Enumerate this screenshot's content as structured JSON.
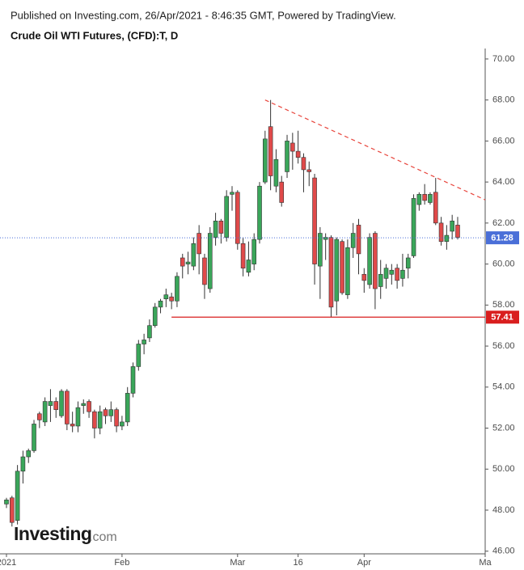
{
  "chart_data": {
    "type": "candlestick",
    "subtitle": "Published on Investing.com, 26/Apr/2021 - 8:46:35 GMT, Powered by TradingView.",
    "title": "Crude Oil WTI Futures, (CFD):T, D",
    "watermark": {
      "brand": "Investing",
      "suffix": ".com"
    },
    "up_color": "#3aa65a",
    "down_color": "#e04a4a",
    "categories": [
      "2021",
      null,
      null,
      null,
      null,
      null,
      null,
      null,
      null,
      null,
      null,
      null,
      null,
      null,
      null,
      null,
      null,
      null,
      null,
      null,
      null,
      "Feb",
      null,
      null,
      null,
      null,
      null,
      null,
      null,
      null,
      null,
      null,
      null,
      null,
      null,
      null,
      null,
      null,
      null,
      null,
      null,
      null,
      "Mar",
      null,
      null,
      null,
      null,
      null,
      null,
      null,
      null,
      null,
      null,
      "16",
      null,
      null,
      null,
      null,
      null,
      null,
      null,
      null,
      null,
      null,
      null,
      "Apr",
      null,
      null,
      null,
      null,
      null,
      null,
      null,
      null,
      null,
      null,
      null,
      null,
      null,
      null,
      null,
      null,
      null,
      null,
      null,
      null,
      null,
      "Ma"
    ],
    "open": [
      48.3,
      48.6,
      47.5,
      49.9,
      50.6,
      50.9,
      52.7,
      52.3,
      53.1,
      53.3,
      52.6,
      53.8,
      52.2,
      52.1,
      53.1,
      53.3,
      52.8,
      52.0,
      52.9,
      52.6,
      52.9,
      52.1,
      52.3,
      53.7,
      55.0,
      56.1,
      56.4,
      57.0,
      57.9,
      58.3,
      58.4,
      58.2,
      60.3,
      60.0,
      59.9,
      61.5,
      60.3,
      58.8,
      61.3,
      62.1,
      61.3,
      63.4,
      63.5,
      61.0,
      59.6,
      60.0,
      61.2,
      64.0,
      66.7,
      63.8,
      64.0,
      64.5,
      65.9,
      65.5,
      65.2,
      64.6,
      64.2,
      59.9,
      61.2,
      61.3,
      58.2,
      61.1,
      58.5,
      60.8,
      61.9,
      59.5,
      59.0,
      61.5,
      58.9,
      59.3,
      59.5,
      59.8,
      59.3,
      59.8,
      60.4,
      62.9,
      63.4,
      63.0,
      63.5,
      62.0,
      61.1,
      61.6,
      61.9,
      null,
      null,
      null,
      null,
      null
    ],
    "high": [
      48.6,
      48.7,
      50.2,
      50.9,
      51.0,
      52.4,
      52.8,
      53.5,
      53.9,
      53.5,
      53.9,
      53.9,
      52.8,
      53.3,
      53.4,
      53.4,
      52.9,
      53.1,
      53.0,
      53.3,
      53.0,
      52.6,
      54.0,
      55.2,
      56.3,
      56.6,
      57.3,
      58.1,
      58.3,
      58.8,
      58.6,
      59.6,
      60.5,
      60.6,
      61.3,
      61.9,
      60.5,
      61.8,
      62.5,
      62.2,
      63.6,
      63.8,
      63.6,
      61.3,
      61.1,
      61.5,
      64.0,
      66.5,
      68.0,
      65.6,
      64.3,
      66.3,
      66.4,
      66.5,
      65.4,
      65.0,
      64.4,
      61.8,
      61.5,
      61.4,
      61.3,
      61.2,
      61.2,
      62.0,
      62.2,
      59.8,
      61.5,
      61.6,
      60.2,
      60.0,
      60.0,
      60.0,
      60.5,
      60.5,
      63.4,
      63.5,
      63.9,
      63.5,
      64.2,
      62.3,
      61.9,
      62.4,
      62.3,
      null,
      null,
      null,
      null,
      null
    ],
    "low": [
      48.1,
      47.2,
      47.3,
      49.3,
      50.3,
      50.8,
      52.0,
      52.1,
      52.3,
      52.5,
      52.5,
      51.9,
      51.8,
      51.8,
      52.7,
      52.5,
      51.5,
      51.7,
      52.2,
      52.3,
      51.8,
      51.9,
      52.1,
      53.5,
      54.8,
      55.6,
      56.2,
      56.9,
      57.6,
      57.9,
      57.8,
      57.9,
      59.3,
      59.5,
      59.7,
      59.5,
      58.3,
      58.6,
      60.9,
      61.0,
      61.1,
      62.6,
      60.7,
      59.4,
      59.4,
      59.7,
      61.0,
      63.9,
      63.6,
      63.5,
      62.8,
      64.2,
      64.6,
      64.9,
      63.5,
      63.8,
      59.0,
      58.3,
      60.2,
      57.4,
      57.5,
      58.5,
      58.3,
      60.3,
      59.5,
      58.6,
      58.8,
      57.8,
      58.3,
      58.8,
      59.0,
      58.8,
      58.9,
      59.3,
      60.3,
      62.6,
      62.9,
      62.9,
      61.9,
      60.9,
      60.7,
      61.2,
      61.2,
      null,
      null,
      null,
      null,
      null
    ],
    "close": [
      48.5,
      47.4,
      49.9,
      50.6,
      50.9,
      52.2,
      52.4,
      53.3,
      53.3,
      52.9,
      53.8,
      52.2,
      52.1,
      53.0,
      53.2,
      52.8,
      52.0,
      52.8,
      52.6,
      52.9,
      52.1,
      52.3,
      53.7,
      55.0,
      56.1,
      56.3,
      57.0,
      57.9,
      58.2,
      58.5,
      58.2,
      59.4,
      59.9,
      60.1,
      61.0,
      60.5,
      59.0,
      61.5,
      62.1,
      61.5,
      63.3,
      63.5,
      61.0,
      59.8,
      60.2,
      61.2,
      63.8,
      66.1,
      64.3,
      65.1,
      63.0,
      66.0,
      65.5,
      65.2,
      64.6,
      64.5,
      60.0,
      61.5,
      61.3,
      57.9,
      61.2,
      58.6,
      60.8,
      61.5,
      60.5,
      59.2,
      61.3,
      58.8,
      59.5,
      59.8,
      59.7,
      59.2,
      59.7,
      60.3,
      63.2,
      63.4,
      63.1,
      63.4,
      62.0,
      61.1,
      61.4,
      62.1,
      61.3,
      null,
      null,
      null,
      null,
      null
    ],
    "ylim": [
      45.87,
      70.51
    ],
    "yticks": [
      {
        "value": 46,
        "label": "46.00"
      },
      {
        "value": 48,
        "label": "48.00"
      },
      {
        "value": 50,
        "label": "50.00"
      },
      {
        "value": 52,
        "label": "52.00"
      },
      {
        "value": 54,
        "label": "54.00"
      },
      {
        "value": 56,
        "label": "56.00"
      },
      {
        "value": 58,
        "label": "58.00"
      },
      {
        "value": 60,
        "label": "60.00"
      },
      {
        "value": 62,
        "label": "62.00"
      },
      {
        "value": 64,
        "label": "64.00"
      },
      {
        "value": 66,
        "label": "66.00"
      },
      {
        "value": 68,
        "label": "68.00"
      },
      {
        "value": 70,
        "label": "70.00"
      }
    ],
    "last_price": {
      "value": 61.28,
      "label": "61.28",
      "color": "#4a6fd8"
    },
    "support": {
      "value": 57.41,
      "label": "57.41",
      "start": 30,
      "color": "#d91e1e"
    },
    "trendline": {
      "x": [
        47,
        87
      ],
      "y": [
        68.0,
        63.13
      ],
      "color": "#e8453c"
    }
  }
}
